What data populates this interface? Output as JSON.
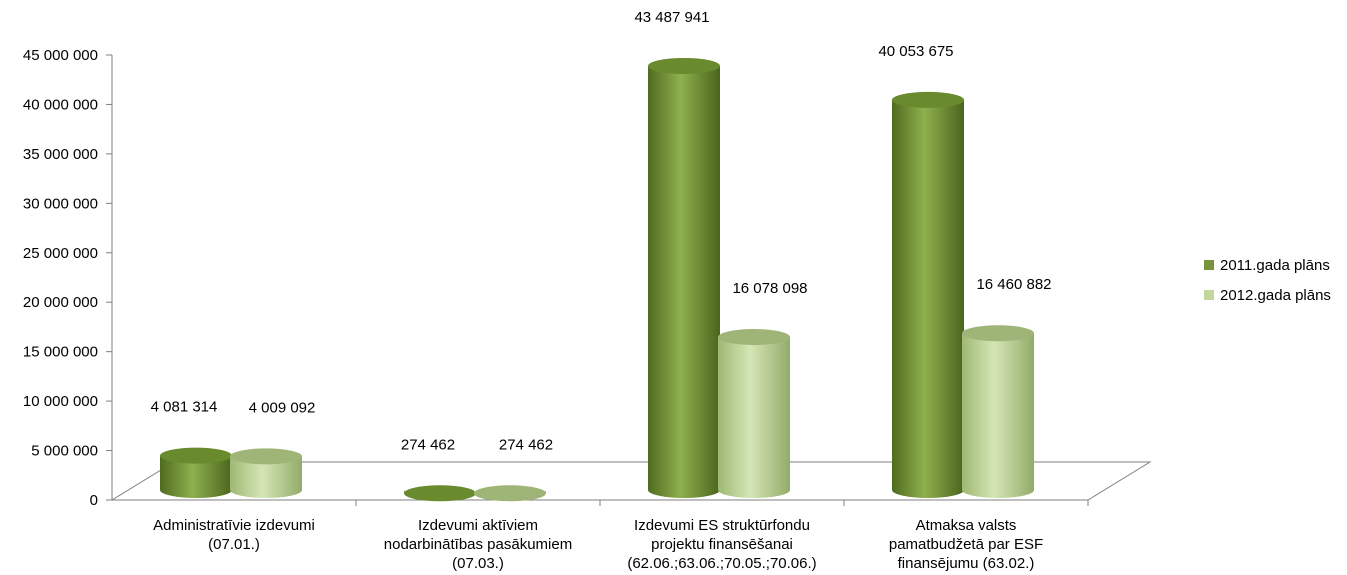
{
  "chart_data": {
    "type": "bar",
    "title": "",
    "xlabel": "",
    "ylabel": "",
    "ylim": [
      0,
      45000000
    ],
    "ytick_step": 5000000,
    "yticks": [
      "0",
      "5 000 000",
      "10 000 000",
      "15 000 000",
      "20 000 000",
      "25 000 000",
      "30 000 000",
      "35 000 000",
      "40 000 000",
      "45 000 000"
    ],
    "categories": [
      [
        "Administratīvie izdevumi",
        "(07.01.)"
      ],
      [
        "Izdevumi aktīviem",
        "nodarbinātības pasākumiem",
        "(07.03.)"
      ],
      [
        "Izdevumi ES struktūrfondu",
        "projektu finansēšanai",
        "(62.06.;63.06.;70.05.;70.06.)"
      ],
      [
        "Atmaksa valsts",
        "pamatbudžetā par ESF",
        "finansējumu (63.02.)"
      ]
    ],
    "series": [
      {
        "name": "2011.gada plāns",
        "color": "#77933c",
        "values": [
          4081314,
          274462,
          43487941,
          40053675
        ],
        "labels": [
          "4 081 314",
          "274 462",
          "43 487 941",
          "40 053 675"
        ]
      },
      {
        "name": "2012.gada plāns",
        "color": "#c3d69b",
        "values": [
          4009092,
          274462,
          16078098,
          16460882
        ],
        "labels": [
          "4 009 092",
          "274 462",
          "16 078 098",
          "16 460 882"
        ]
      }
    ],
    "legend_position": "right",
    "style": "3d-cylinder",
    "grid": false
  }
}
